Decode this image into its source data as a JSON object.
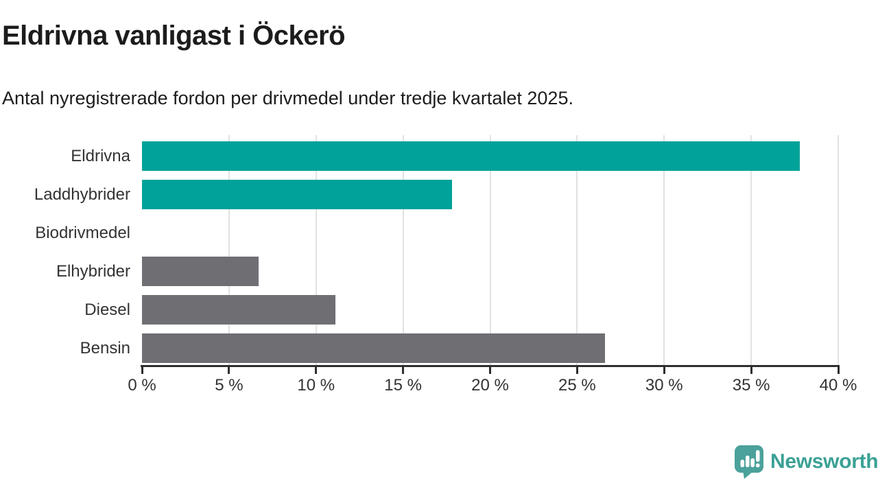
{
  "header": {
    "title": "Eldrivna vanligast i Öckerö",
    "subtitle": "Antal nyregistrerade fordon per drivmedel under tredje kvartalet 2025."
  },
  "chart_data": {
    "type": "bar",
    "orientation": "horizontal",
    "title": "Eldrivna vanligast i Öckerö",
    "subtitle": "Antal nyregistrerade fordon per drivmedel under tredje kvartalet 2025.",
    "categories": [
      "Eldrivna",
      "Laddhybrider",
      "Biodrivmedel",
      "Elhybrider",
      "Diesel",
      "Bensin"
    ],
    "values": [
      37.8,
      17.8,
      0,
      6.7,
      11.1,
      26.6
    ],
    "unit": "%",
    "bar_colors": [
      "#00a29a",
      "#00a29a",
      "#00a29a",
      "#6e6e73",
      "#6e6e73",
      "#6e6e73"
    ],
    "highlight_color": "#00a29a",
    "default_color": "#6e6e73",
    "xlim": [
      0,
      40
    ],
    "x_ticks": [
      0,
      5,
      10,
      15,
      20,
      25,
      30,
      35,
      40
    ],
    "x_tick_labels": [
      "0 %",
      "5 %",
      "10 %",
      "15 %",
      "20 %",
      "25 %",
      "30 %",
      "35 %",
      "40 %"
    ],
    "xlabel": "",
    "ylabel": "",
    "grid": "vertical-gridlines",
    "legend": "none"
  },
  "branding": {
    "logo_text": "Newsworthy",
    "logo_icon": "newsworthy-bar-chart-speech-bubble-icon",
    "logo_text_color": "#3aa195",
    "logo_icon_color": "#4ba19b"
  },
  "style": {
    "background": "#ffffff",
    "axis_color": "#2e2e2e",
    "grid_color": "#e2e2e2",
    "title_color": "#1c1c1c",
    "label_color": "#333333"
  }
}
